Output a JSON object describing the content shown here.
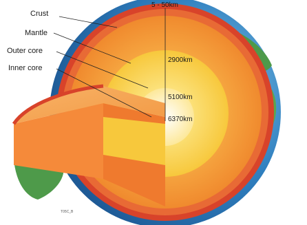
{
  "layers": [
    {
      "name": "Crust",
      "depth": "5 - 50km"
    },
    {
      "name": "Mantle",
      "depth": "2900km"
    },
    {
      "name": "Outer core",
      "depth": "5100km"
    },
    {
      "name": "Inner core",
      "depth": "6370km"
    }
  ],
  "credit": "T05C_B",
  "colors": {
    "crust": "#d8432a",
    "mantle": "#f4a340",
    "outer_core": "#fbd84a",
    "inner_core": "#fff6c8",
    "ocean": "#2f7fbf",
    "land": "#4e9a4a"
  }
}
